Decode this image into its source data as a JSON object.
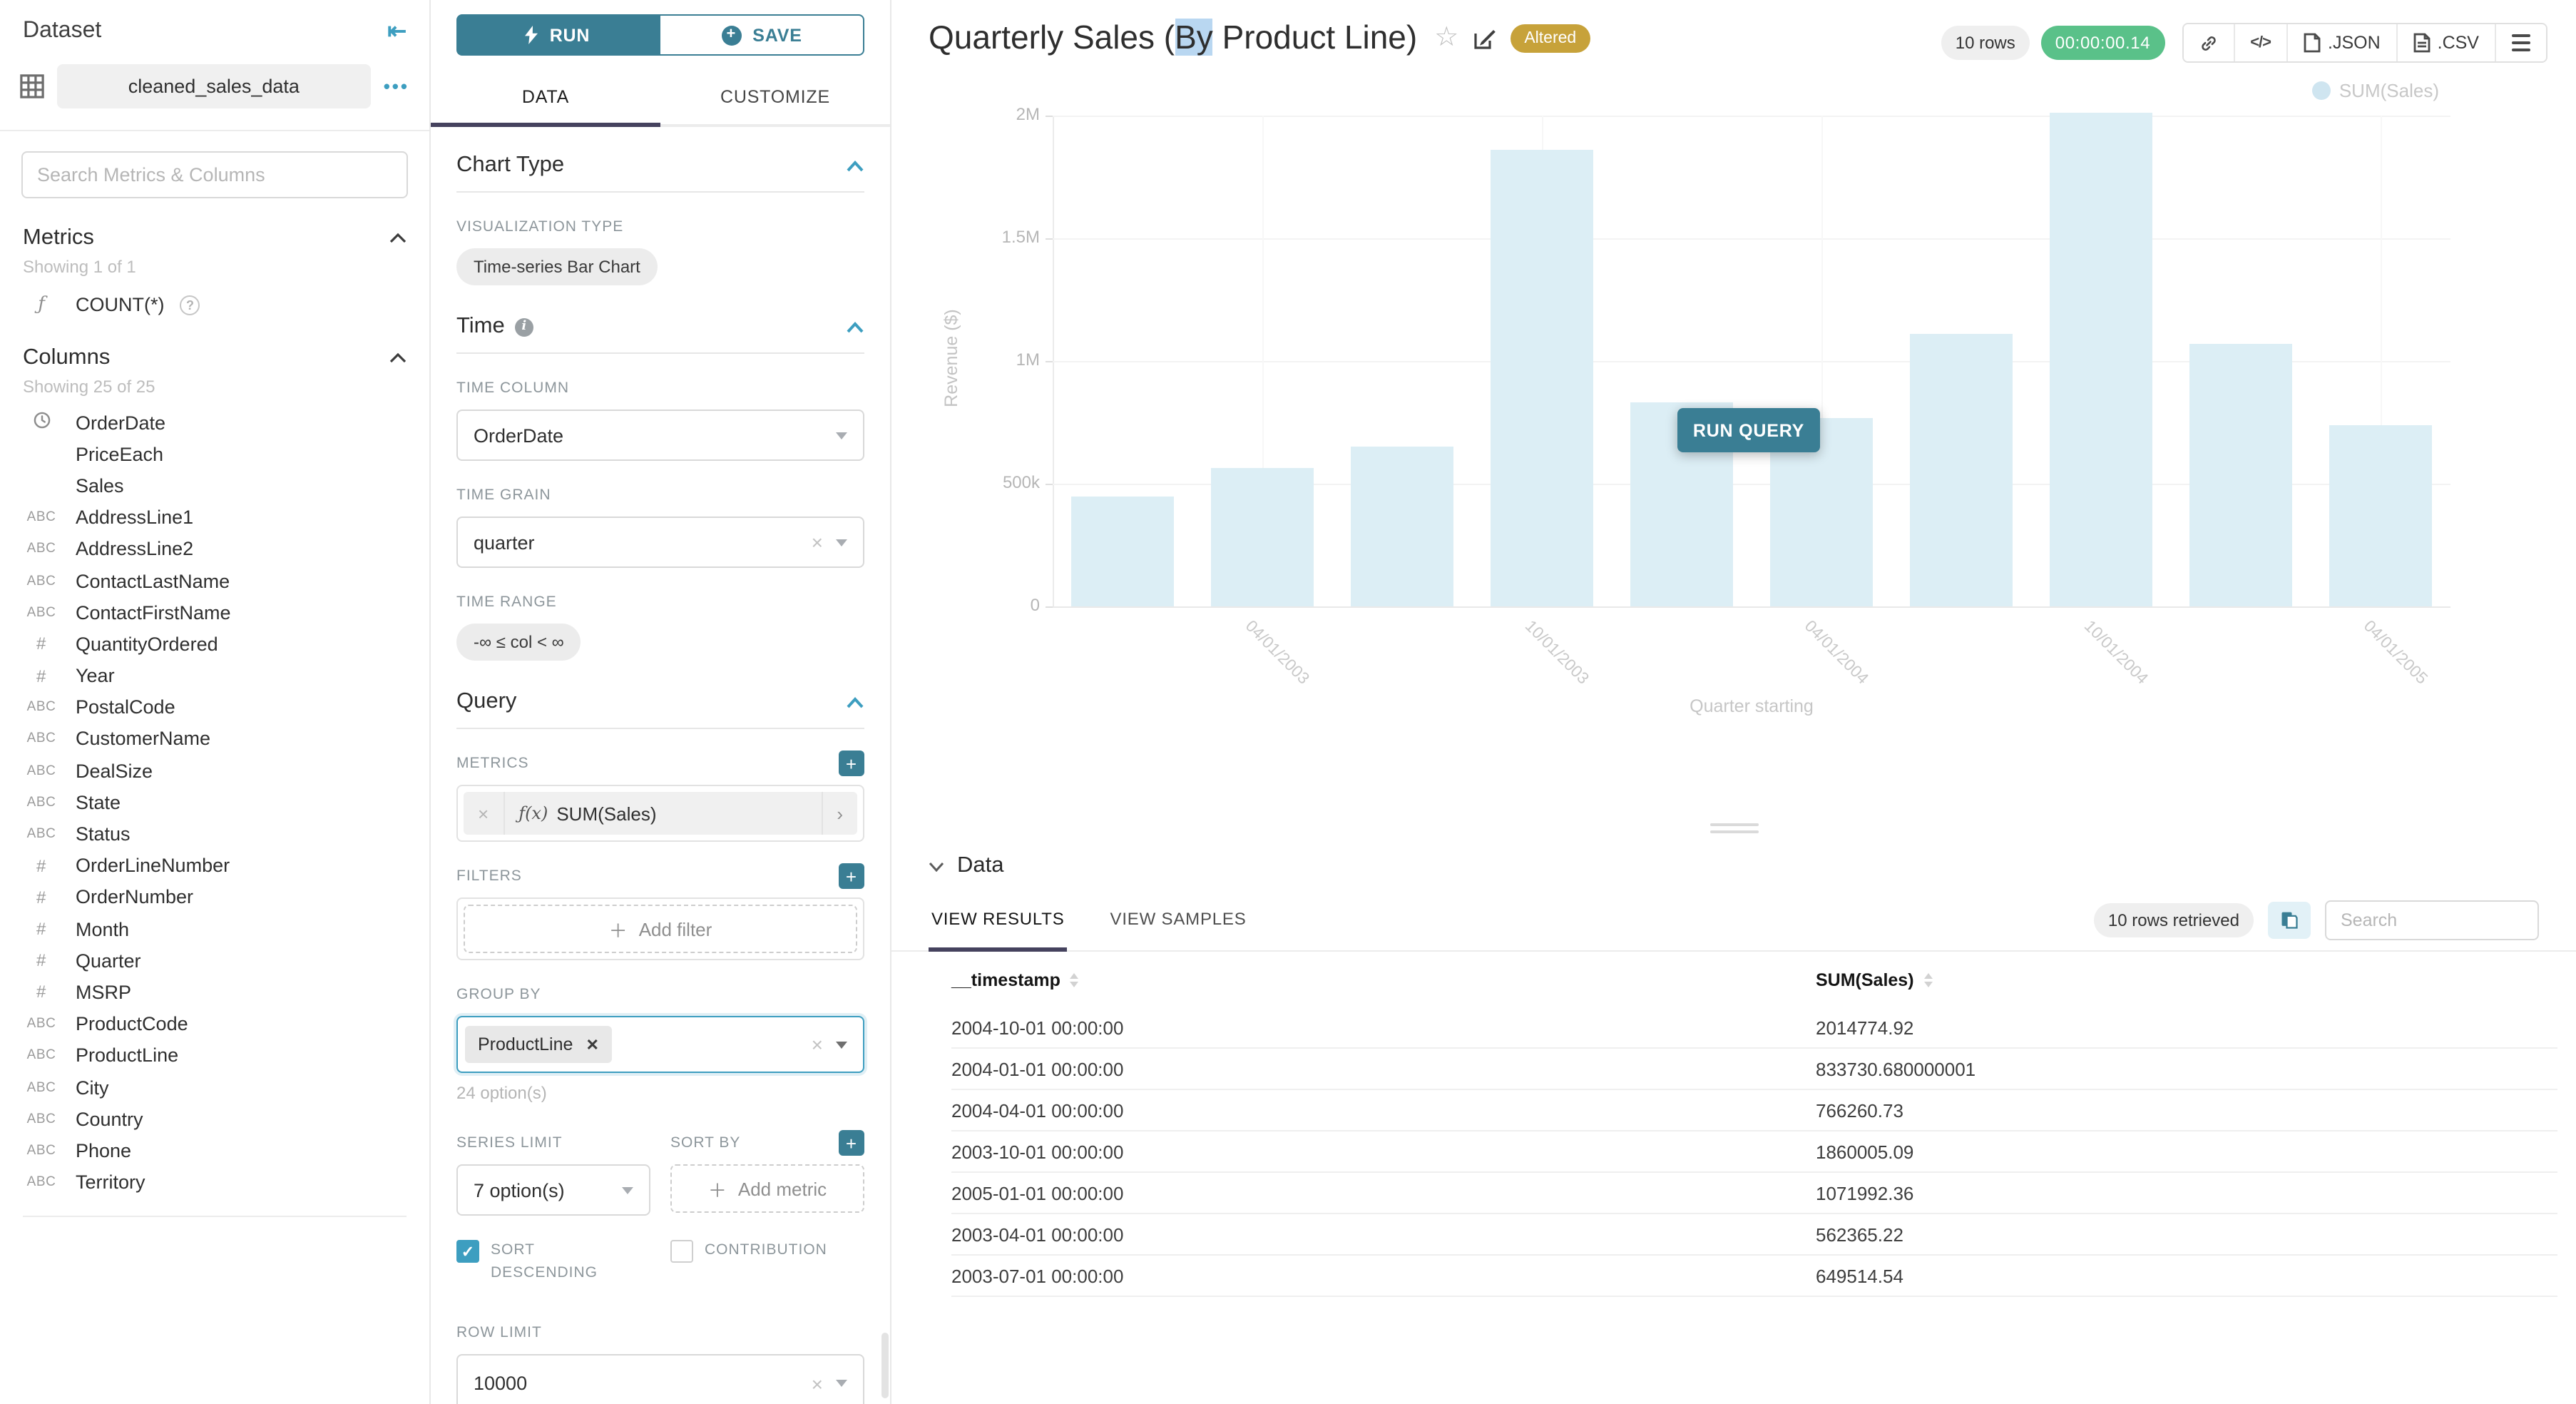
{
  "colors": {
    "primary": "#3a7e94",
    "accent": "#3d9ec0",
    "altered_badge": "#c7a23a",
    "timer_badge": "#5ac189",
    "bar": "#dceef5",
    "tab_underline": "#45425e",
    "title_selection": "#b9d7f1"
  },
  "sidebar": {
    "title": "Dataset",
    "dataset_name": "cleaned_sales_data",
    "search_placeholder": "Search Metrics & Columns",
    "metrics": {
      "title": "Metrics",
      "showing": "Showing 1 of 1",
      "fx_icon": "ƒ",
      "item": "COUNT(*)"
    },
    "columns": {
      "title": "Columns",
      "showing": "Showing 25 of 25",
      "items": [
        {
          "name": "OrderDate",
          "type": "clock"
        },
        {
          "name": "PriceEach",
          "type": "none"
        },
        {
          "name": "Sales",
          "type": "none"
        },
        {
          "name": "AddressLine1",
          "type": "abc"
        },
        {
          "name": "AddressLine2",
          "type": "abc"
        },
        {
          "name": "ContactLastName",
          "type": "abc"
        },
        {
          "name": "ContactFirstName",
          "type": "abc"
        },
        {
          "name": "QuantityOrdered",
          "type": "num"
        },
        {
          "name": "Year",
          "type": "num"
        },
        {
          "name": "PostalCode",
          "type": "abc"
        },
        {
          "name": "CustomerName",
          "type": "abc"
        },
        {
          "name": "DealSize",
          "type": "abc"
        },
        {
          "name": "State",
          "type": "abc"
        },
        {
          "name": "Status",
          "type": "abc"
        },
        {
          "name": "OrderLineNumber",
          "type": "num"
        },
        {
          "name": "OrderNumber",
          "type": "num"
        },
        {
          "name": "Month",
          "type": "num"
        },
        {
          "name": "Quarter",
          "type": "num"
        },
        {
          "name": "MSRP",
          "type": "num"
        },
        {
          "name": "ProductCode",
          "type": "abc"
        },
        {
          "name": "ProductLine",
          "type": "abc"
        },
        {
          "name": "City",
          "type": "abc"
        },
        {
          "name": "Country",
          "type": "abc"
        },
        {
          "name": "Phone",
          "type": "abc"
        },
        {
          "name": "Territory",
          "type": "abc"
        }
      ]
    }
  },
  "controls": {
    "run_label": "RUN",
    "save_label": "SAVE",
    "tabs": {
      "data": "DATA",
      "customize": "CUSTOMIZE"
    },
    "chart_type": {
      "title": "Chart Type",
      "viz_label": "VISUALIZATION TYPE",
      "viz_value": "Time-series Bar Chart"
    },
    "time": {
      "title": "Time",
      "column_label": "TIME COLUMN",
      "column_value": "OrderDate",
      "grain_label": "TIME GRAIN",
      "grain_value": "quarter",
      "range_label": "TIME RANGE",
      "range_value": "-∞ ≤ col < ∞"
    },
    "query": {
      "title": "Query",
      "metrics_label": "METRICS",
      "metric_fx": "ƒ(x)",
      "metric_value": "SUM(Sales)",
      "filters_label": "FILTERS",
      "add_filter": "Add filter",
      "group_by_label": "GROUP BY",
      "group_by_value": "ProductLine",
      "group_by_hint": "24 option(s)",
      "series_limit_label": "SERIES LIMIT",
      "series_limit_value": "7 option(s)",
      "sort_by_label": "SORT BY",
      "add_metric": "Add metric",
      "sort_descending_label": "SORT DESCENDING",
      "contribution_label": "CONTRIBUTION",
      "row_limit_label": "ROW LIMIT",
      "row_limit_value": "10000"
    }
  },
  "header": {
    "title_pre": "Quarterly Sales (",
    "title_selected": "By",
    "title_post": " Product Line)",
    "altered": "Altered",
    "rows": "10 rows",
    "timer": "00:00:00.14",
    "embed": "</>",
    "json": ".JSON",
    "csv": ".CSV"
  },
  "chart": {
    "run_query": "RUN QUERY"
  },
  "chart_data": {
    "type": "bar",
    "title": "Quarterly Sales (By Product Line)",
    "xlabel": "Quarter starting",
    "ylabel": "Revenue ($)",
    "ylim": [
      0,
      2000000
    ],
    "grid": true,
    "legend_position": "top-right",
    "bar_color": "#dceef5",
    "series": [
      {
        "name": "SUM(Sales)",
        "x": [
          "2003-01-01",
          "2003-04-01",
          "2003-07-01",
          "2003-10-01",
          "2004-01-01",
          "2004-04-01",
          "2004-07-01",
          "2004-10-01",
          "2005-01-01",
          "2005-04-01"
        ],
        "values": [
          445094.69,
          562365.22,
          649514.54,
          1860005.09,
          833730.68,
          766260.73,
          1109396.1,
          2014774.92,
          1071992.36,
          739655.5
        ]
      }
    ],
    "yticks": [
      {
        "value": 0,
        "label": "0"
      },
      {
        "value": 500000,
        "label": "500k"
      },
      {
        "value": 1000000,
        "label": "1M"
      },
      {
        "value": 1500000,
        "label": "1.5M"
      },
      {
        "value": 2000000,
        "label": "2M"
      }
    ],
    "xticks": [
      {
        "index": 1,
        "label": "04/01/2003"
      },
      {
        "index": 3,
        "label": "10/01/2003"
      },
      {
        "index": 5,
        "label": "04/01/2004"
      },
      {
        "index": 7,
        "label": "10/01/2004"
      },
      {
        "index": 9,
        "label": "04/01/2005"
      }
    ]
  },
  "datapanel": {
    "title": "Data",
    "tabs": [
      "VIEW RESULTS",
      "VIEW SAMPLES"
    ],
    "rows_retrieved": "10 rows retrieved",
    "search_placeholder": "Search",
    "columns": [
      "__timestamp",
      "SUM(Sales)"
    ],
    "rows": [
      [
        "2004-10-01 00:00:00",
        "2014774.92"
      ],
      [
        "2004-01-01 00:00:00",
        "833730.680000001"
      ],
      [
        "2004-04-01 00:00:00",
        "766260.73"
      ],
      [
        "2003-10-01 00:00:00",
        "1860005.09"
      ],
      [
        "2005-01-01 00:00:00",
        "1071992.36"
      ],
      [
        "2003-04-01 00:00:00",
        "562365.22"
      ],
      [
        "2003-07-01 00:00:00",
        "649514.54"
      ]
    ]
  }
}
